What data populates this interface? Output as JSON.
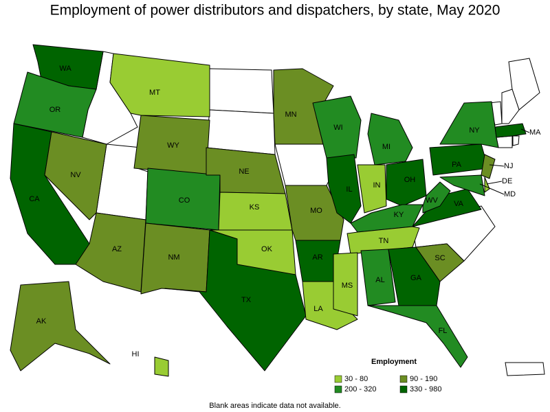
{
  "title": "Employment of power distributors and dispatchers, by state, May 2020",
  "legend": {
    "title": "Employment",
    "items": [
      {
        "label": "30 - 80",
        "color": "#99cc33"
      },
      {
        "label": "90 - 190",
        "color": "#6b8e23"
      },
      {
        "label": "200 - 320",
        "color": "#228b22"
      },
      {
        "label": "330 - 980",
        "color": "#006400"
      }
    ]
  },
  "states": [
    {
      "label": "WA",
      "bin": 3
    },
    {
      "label": "OR",
      "bin": 2
    },
    {
      "label": "CA",
      "bin": 3
    },
    {
      "label": "NV",
      "bin": 1
    },
    {
      "label": "MT",
      "bin": 0
    },
    {
      "label": "WY",
      "bin": 1
    },
    {
      "label": "AZ",
      "bin": 1
    },
    {
      "label": "CO",
      "bin": 2
    },
    {
      "label": "NM",
      "bin": 1
    },
    {
      "label": "NE",
      "bin": 1
    },
    {
      "label": "KS",
      "bin": 0
    },
    {
      "label": "OK",
      "bin": 0
    },
    {
      "label": "TX",
      "bin": 3
    },
    {
      "label": "MN",
      "bin": 1
    },
    {
      "label": "MO",
      "bin": 1
    },
    {
      "label": "AR",
      "bin": 3
    },
    {
      "label": "LA",
      "bin": 0
    },
    {
      "label": "WI",
      "bin": 2
    },
    {
      "label": "IL",
      "bin": 3
    },
    {
      "label": "MI",
      "bin": 2
    },
    {
      "label": "IN",
      "bin": 0
    },
    {
      "label": "OH",
      "bin": 3
    },
    {
      "label": "KY",
      "bin": 2
    },
    {
      "label": "TN",
      "bin": 0
    },
    {
      "label": "MS",
      "bin": 0
    },
    {
      "label": "AL",
      "bin": 2
    },
    {
      "label": "GA",
      "bin": 3
    },
    {
      "label": "FL",
      "bin": 2
    },
    {
      "label": "SC",
      "bin": 1
    },
    {
      "label": "VA",
      "bin": 3
    },
    {
      "label": "WV",
      "bin": 2
    },
    {
      "label": "PA",
      "bin": 3
    },
    {
      "label": "NY",
      "bin": 2
    },
    {
      "label": "NJ",
      "bin": 1
    },
    {
      "label": "DE",
      "bin": 0
    },
    {
      "label": "MD",
      "bin": 2
    },
    {
      "label": "MA",
      "bin": 3
    },
    {
      "label": "AK",
      "bin": 1
    },
    {
      "label": "HI",
      "bin": 0
    }
  ],
  "note": "Blank areas indicate data not available."
}
